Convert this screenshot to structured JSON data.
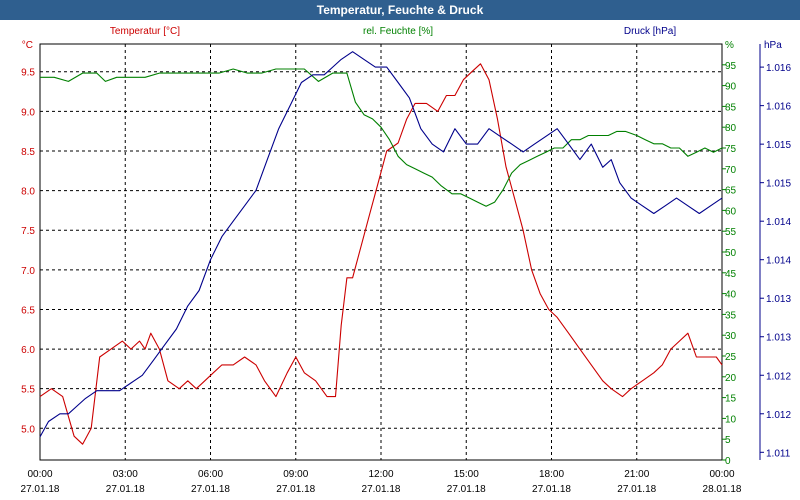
{
  "window": {
    "title": "Temperatur, Feuchte & Druck"
  },
  "chart_data": {
    "type": "line",
    "title": "Temperatur, Feuchte & Druck",
    "x_ticks": [
      {
        "time": "00:00",
        "date": "27.01.18"
      },
      {
        "time": "03:00",
        "date": "27.01.18"
      },
      {
        "time": "06:00",
        "date": "27.01.18"
      },
      {
        "time": "09:00",
        "date": "27.01.18"
      },
      {
        "time": "12:00",
        "date": "27.01.18"
      },
      {
        "time": "15:00",
        "date": "27.01.18"
      },
      {
        "time": "18:00",
        "date": "27.01.18"
      },
      {
        "time": "21:00",
        "date": "27.01.18"
      },
      {
        "time": "00:00",
        "date": "28.01.18"
      }
    ],
    "x_range_hours": [
      0,
      24
    ],
    "grid": true,
    "axes": {
      "temperature": {
        "label": "Temperatur [°C]",
        "unit": "°C",
        "color": "#cc0000",
        "range": [
          4.6,
          9.85
        ],
        "ticks": [
          "5.0",
          "5.5",
          "6.0",
          "6.5",
          "7.0",
          "7.5",
          "8.0",
          "8.5",
          "9.0",
          "9.5"
        ]
      },
      "humidity": {
        "label": "rel. Feuchte [%]",
        "unit": "%",
        "color": "#008000",
        "range": [
          0,
          100
        ],
        "ticks": [
          "0",
          "5",
          "10",
          "15",
          "20",
          "25",
          "30",
          "35",
          "40",
          "45",
          "50",
          "55",
          "60",
          "65",
          "70",
          "75",
          "80",
          "85",
          "90",
          "95"
        ]
      },
      "pressure": {
        "label": "Druck [hPa]",
        "unit": "hPa",
        "color": "#00008b",
        "range": [
          1010.9,
          1016.3
        ],
        "tick_values": [
          1011.0,
          1011.5,
          1012.0,
          1012.5,
          1013.0,
          1013.5,
          1014.0,
          1014.5,
          1015.0,
          1015.5,
          1016.0
        ],
        "tick_labels": [
          "1.011",
          "1.012",
          "1.012",
          "1.013",
          "1.013",
          "1.014",
          "1.014",
          "1.015",
          "1.015",
          "1.016",
          "1.016"
        ]
      }
    },
    "series": [
      {
        "name": "Temperatur [°C]",
        "axis": "temperature",
        "color": "#cc0000",
        "points": [
          [
            0,
            5.4
          ],
          [
            0.4,
            5.5
          ],
          [
            0.8,
            5.4
          ],
          [
            1.2,
            4.9
          ],
          [
            1.5,
            4.8
          ],
          [
            1.8,
            5.0
          ],
          [
            2.1,
            5.9
          ],
          [
            2.5,
            6.0
          ],
          [
            2.9,
            6.1
          ],
          [
            3.2,
            6.0
          ],
          [
            3.5,
            6.1
          ],
          [
            3.7,
            6.0
          ],
          [
            3.9,
            6.2
          ],
          [
            4.2,
            6.0
          ],
          [
            4.5,
            5.6
          ],
          [
            4.9,
            5.5
          ],
          [
            5.2,
            5.6
          ],
          [
            5.5,
            5.5
          ],
          [
            5.8,
            5.6
          ],
          [
            6.1,
            5.7
          ],
          [
            6.4,
            5.8
          ],
          [
            6.8,
            5.8
          ],
          [
            7.2,
            5.9
          ],
          [
            7.6,
            5.8
          ],
          [
            7.9,
            5.6
          ],
          [
            8.3,
            5.4
          ],
          [
            8.7,
            5.7
          ],
          [
            9.0,
            5.9
          ],
          [
            9.3,
            5.7
          ],
          [
            9.7,
            5.6
          ],
          [
            10.1,
            5.4
          ],
          [
            10.4,
            5.4
          ],
          [
            10.6,
            6.3
          ],
          [
            10.8,
            6.9
          ],
          [
            11.0,
            6.9
          ],
          [
            11.3,
            7.3
          ],
          [
            11.6,
            7.7
          ],
          [
            11.9,
            8.1
          ],
          [
            12.2,
            8.5
          ],
          [
            12.6,
            8.6
          ],
          [
            12.9,
            8.9
          ],
          [
            13.2,
            9.1
          ],
          [
            13.6,
            9.1
          ],
          [
            14.0,
            9.0
          ],
          [
            14.3,
            9.2
          ],
          [
            14.6,
            9.2
          ],
          [
            14.9,
            9.4
          ],
          [
            15.2,
            9.5
          ],
          [
            15.5,
            9.6
          ],
          [
            15.8,
            9.4
          ],
          [
            16.1,
            8.9
          ],
          [
            16.4,
            8.3
          ],
          [
            16.7,
            7.9
          ],
          [
            17.0,
            7.5
          ],
          [
            17.3,
            7.0
          ],
          [
            17.6,
            6.7
          ],
          [
            17.9,
            6.5
          ],
          [
            18.2,
            6.4
          ],
          [
            18.6,
            6.2
          ],
          [
            19.0,
            6.0
          ],
          [
            19.4,
            5.8
          ],
          [
            19.8,
            5.6
          ],
          [
            20.1,
            5.5
          ],
          [
            20.5,
            5.4
          ],
          [
            20.8,
            5.5
          ],
          [
            21.2,
            5.6
          ],
          [
            21.6,
            5.7
          ],
          [
            21.9,
            5.8
          ],
          [
            22.2,
            6.0
          ],
          [
            22.5,
            6.1
          ],
          [
            22.8,
            6.2
          ],
          [
            23.1,
            5.9
          ],
          [
            23.5,
            5.9
          ],
          [
            23.8,
            5.9
          ],
          [
            24.0,
            5.8
          ]
        ]
      },
      {
        "name": "rel. Feuchte [%]",
        "axis": "humidity",
        "color": "#008000",
        "points": [
          [
            0,
            92
          ],
          [
            0.5,
            92
          ],
          [
            1.0,
            91
          ],
          [
            1.5,
            93
          ],
          [
            2.0,
            93
          ],
          [
            2.3,
            91
          ],
          [
            2.7,
            92
          ],
          [
            3.2,
            92
          ],
          [
            3.7,
            92
          ],
          [
            4.2,
            93
          ],
          [
            4.8,
            93
          ],
          [
            5.3,
            93
          ],
          [
            5.8,
            93
          ],
          [
            6.3,
            93
          ],
          [
            6.8,
            94
          ],
          [
            7.3,
            93
          ],
          [
            7.8,
            93
          ],
          [
            8.3,
            94
          ],
          [
            8.8,
            94
          ],
          [
            9.3,
            94
          ],
          [
            9.8,
            91
          ],
          [
            10.3,
            93
          ],
          [
            10.8,
            93
          ],
          [
            11.1,
            86
          ],
          [
            11.4,
            83
          ],
          [
            11.7,
            82
          ],
          [
            12.0,
            80
          ],
          [
            12.3,
            77
          ],
          [
            12.6,
            73
          ],
          [
            12.9,
            71
          ],
          [
            13.2,
            70
          ],
          [
            13.5,
            69
          ],
          [
            13.8,
            68
          ],
          [
            14.1,
            66
          ],
          [
            14.5,
            64
          ],
          [
            14.8,
            64
          ],
          [
            15.1,
            63
          ],
          [
            15.4,
            62
          ],
          [
            15.7,
            61
          ],
          [
            16.0,
            62
          ],
          [
            16.3,
            65
          ],
          [
            16.6,
            69
          ],
          [
            16.9,
            71
          ],
          [
            17.2,
            72
          ],
          [
            17.5,
            73
          ],
          [
            17.8,
            74
          ],
          [
            18.1,
            75
          ],
          [
            18.4,
            75
          ],
          [
            18.7,
            77
          ],
          [
            19.0,
            77
          ],
          [
            19.3,
            78
          ],
          [
            19.7,
            78
          ],
          [
            20.0,
            78
          ],
          [
            20.3,
            79
          ],
          [
            20.6,
            79
          ],
          [
            21.0,
            78
          ],
          [
            21.3,
            77
          ],
          [
            21.6,
            76
          ],
          [
            21.9,
            76
          ],
          [
            22.2,
            75
          ],
          [
            22.5,
            75
          ],
          [
            22.8,
            73
          ],
          [
            23.1,
            74
          ],
          [
            23.4,
            75
          ],
          [
            23.7,
            74
          ],
          [
            24.0,
            75
          ]
        ]
      },
      {
        "name": "Druck [hPa]",
        "axis": "pressure",
        "color": "#00008b",
        "points": [
          [
            0,
            1011.2
          ],
          [
            0.3,
            1011.4
          ],
          [
            0.7,
            1011.5
          ],
          [
            1.0,
            1011.5
          ],
          [
            1.3,
            1011.6
          ],
          [
            1.6,
            1011.7
          ],
          [
            2.0,
            1011.8
          ],
          [
            2.4,
            1011.8
          ],
          [
            2.8,
            1011.8
          ],
          [
            3.2,
            1011.9
          ],
          [
            3.6,
            1012.0
          ],
          [
            4.0,
            1012.2
          ],
          [
            4.4,
            1012.4
          ],
          [
            4.8,
            1012.6
          ],
          [
            5.2,
            1012.9
          ],
          [
            5.6,
            1013.1
          ],
          [
            6.0,
            1013.5
          ],
          [
            6.4,
            1013.8
          ],
          [
            6.8,
            1014.0
          ],
          [
            7.2,
            1014.2
          ],
          [
            7.6,
            1014.4
          ],
          [
            8.0,
            1014.8
          ],
          [
            8.4,
            1015.2
          ],
          [
            8.8,
            1015.5
          ],
          [
            9.2,
            1015.8
          ],
          [
            9.6,
            1015.9
          ],
          [
            10.0,
            1015.9
          ],
          [
            10.3,
            1016.0
          ],
          [
            10.6,
            1016.1
          ],
          [
            11.0,
            1016.2
          ],
          [
            11.4,
            1016.1
          ],
          [
            11.8,
            1016.0
          ],
          [
            12.2,
            1016.0
          ],
          [
            12.6,
            1015.8
          ],
          [
            13.0,
            1015.6
          ],
          [
            13.4,
            1015.2
          ],
          [
            13.8,
            1015.0
          ],
          [
            14.2,
            1014.9
          ],
          [
            14.6,
            1015.2
          ],
          [
            15.0,
            1015.0
          ],
          [
            15.4,
            1015.0
          ],
          [
            15.8,
            1015.2
          ],
          [
            16.2,
            1015.1
          ],
          [
            16.6,
            1015.0
          ],
          [
            17.0,
            1014.9
          ],
          [
            17.4,
            1015.0
          ],
          [
            17.8,
            1015.1
          ],
          [
            18.2,
            1015.2
          ],
          [
            18.6,
            1015.0
          ],
          [
            19.0,
            1014.8
          ],
          [
            19.4,
            1015.0
          ],
          [
            19.8,
            1014.7
          ],
          [
            20.1,
            1014.8
          ],
          [
            20.4,
            1014.5
          ],
          [
            20.8,
            1014.3
          ],
          [
            21.2,
            1014.2
          ],
          [
            21.6,
            1014.1
          ],
          [
            22.0,
            1014.2
          ],
          [
            22.4,
            1014.3
          ],
          [
            22.8,
            1014.2
          ],
          [
            23.2,
            1014.1
          ],
          [
            23.6,
            1014.2
          ],
          [
            24.0,
            1014.3
          ]
        ]
      }
    ]
  }
}
